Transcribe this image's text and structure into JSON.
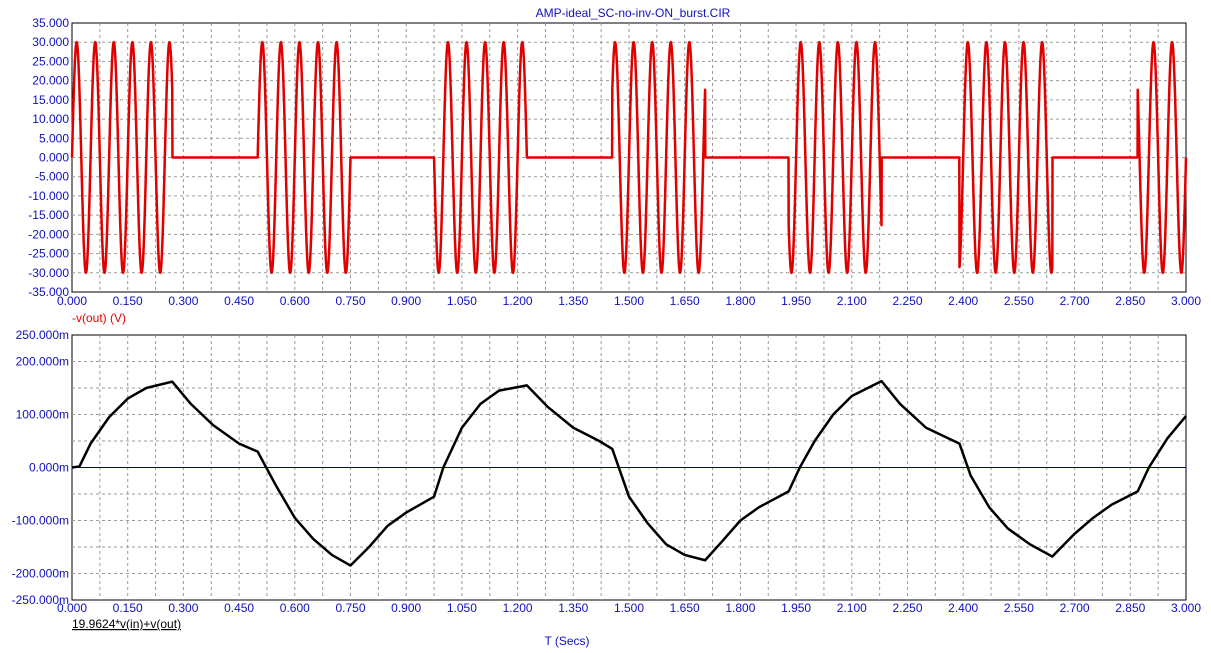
{
  "title": "AMP-ideal_SC-no-inv-ON_burst.CIR",
  "x_axis_label": "T (Secs)",
  "colors": {
    "text_blue": "#1010c0",
    "trace_red": "#e00000",
    "trace_black": "#000000",
    "zero_line": "#000080",
    "grid": "#9a9a9a"
  },
  "chart_data": [
    {
      "type": "line",
      "name": "-v(out) (V)",
      "series_label": "-v(out) (V)",
      "color": "#e00000",
      "xlim": [
        0,
        3.0
      ],
      "ylim": [
        -35,
        35
      ],
      "x_ticks": [
        "0.000",
        "0.150",
        "0.300",
        "0.450",
        "0.600",
        "0.750",
        "0.900",
        "1.050",
        "1.200",
        "1.350",
        "1.500",
        "1.650",
        "1.800",
        "1.950",
        "2.100",
        "2.250",
        "2.400",
        "2.550",
        "2.700",
        "2.850",
        "3.000"
      ],
      "y_ticks": [
        "35.000",
        "30.000",
        "25.000",
        "20.000",
        "15.000",
        "10.000",
        "5.000",
        "0.000",
        "-5.000",
        "-10.000",
        "-15.000",
        "-20.000",
        "-25.000",
        "-30.000",
        "-35.000"
      ],
      "amplitude": 30,
      "carrier_cycles_per_sec": 20,
      "bursts": [
        [
          0.0,
          0.27
        ],
        [
          0.5,
          0.75
        ],
        [
          0.975,
          1.225
        ],
        [
          1.455,
          1.705
        ],
        [
          1.93,
          2.18
        ],
        [
          2.39,
          2.64
        ],
        [
          2.87,
          3.0
        ]
      ],
      "grid": true
    },
    {
      "type": "line",
      "name": "19.9624*v(in)+v(out)",
      "series_label": "19.9624*v(in)+v(out)",
      "color": "#000000",
      "xlim": [
        0,
        3.0
      ],
      "ylim": [
        -0.25,
        0.25
      ],
      "x_ticks": [
        "0.000",
        "0.150",
        "0.300",
        "0.450",
        "0.600",
        "0.750",
        "0.900",
        "1.050",
        "1.200",
        "1.350",
        "1.500",
        "1.650",
        "1.800",
        "1.950",
        "2.100",
        "2.250",
        "2.400",
        "2.550",
        "2.700",
        "2.850",
        "3.000"
      ],
      "y_ticks": [
        "250.000m",
        "200.000m",
        "100.000m",
        "0.000m",
        "-100.000m",
        "-200.000m",
        "-250.000m"
      ],
      "y_tick_values": [
        0.25,
        0.2,
        0.1,
        0.0,
        -0.1,
        -0.2,
        -0.25
      ],
      "x": [
        0.0,
        0.02,
        0.05,
        0.1,
        0.15,
        0.2,
        0.27,
        0.32,
        0.38,
        0.45,
        0.5,
        0.55,
        0.6,
        0.65,
        0.7,
        0.75,
        0.8,
        0.85,
        0.9,
        0.975,
        1.0,
        1.05,
        1.1,
        1.15,
        1.225,
        1.28,
        1.35,
        1.42,
        1.455,
        1.5,
        1.55,
        1.6,
        1.65,
        1.705,
        1.75,
        1.8,
        1.85,
        1.93,
        1.96,
        2.0,
        2.05,
        2.1,
        2.18,
        2.23,
        2.3,
        2.39,
        2.42,
        2.47,
        2.52,
        2.58,
        2.64,
        2.7,
        2.75,
        2.8,
        2.87,
        2.9,
        2.95,
        3.0
      ],
      "y": [
        0.0,
        0.002,
        0.045,
        0.095,
        0.13,
        0.15,
        0.162,
        0.12,
        0.08,
        0.045,
        0.03,
        -0.035,
        -0.095,
        -0.135,
        -0.165,
        -0.185,
        -0.15,
        -0.11,
        -0.085,
        -0.055,
        0.0,
        0.075,
        0.12,
        0.145,
        0.155,
        0.115,
        0.075,
        0.05,
        0.035,
        -0.055,
        -0.105,
        -0.145,
        -0.165,
        -0.175,
        -0.14,
        -0.1,
        -0.075,
        -0.045,
        0.0,
        0.05,
        0.1,
        0.135,
        0.163,
        0.12,
        0.075,
        0.045,
        -0.015,
        -0.075,
        -0.115,
        -0.145,
        -0.168,
        -0.125,
        -0.095,
        -0.07,
        -0.045,
        0.0,
        0.055,
        0.097
      ],
      "grid": true
    }
  ]
}
